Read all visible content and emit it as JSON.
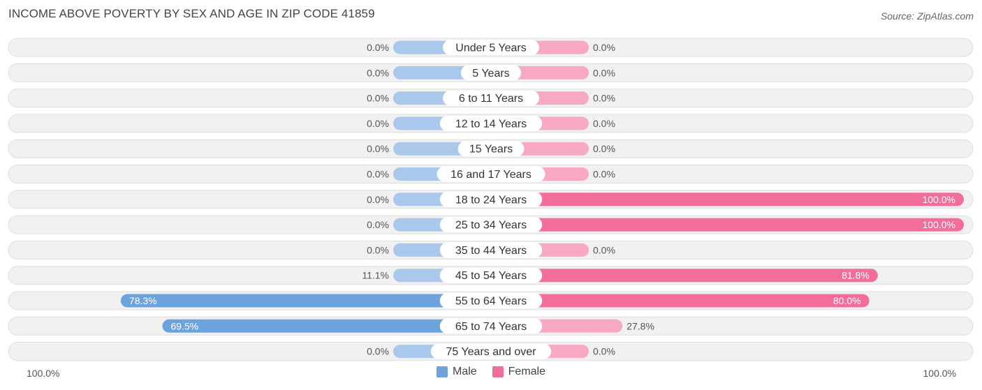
{
  "title": "INCOME ABOVE POVERTY BY SEX AND AGE IN ZIP CODE 41859",
  "source": "Source: ZipAtlas.com",
  "colors": {
    "male_light": "#aac8ec",
    "male_dark": "#6da3dd",
    "female_light": "#f7a9c2",
    "female_dark": "#f26e98",
    "row_bg": "#f1f1f1",
    "row_border": "#dedede"
  },
  "legend": {
    "male": "Male",
    "female": "Female"
  },
  "axis": {
    "left": "100.0%",
    "right": "100.0%"
  },
  "chart_data": {
    "type": "bar",
    "orientation": "horizontal-diverging",
    "title": "INCOME ABOVE POVERTY BY SEX AND AGE IN ZIP CODE 41859",
    "categories": [
      "Under 5 Years",
      "5 Years",
      "6 to 11 Years",
      "12 to 14 Years",
      "15 Years",
      "16 and 17 Years",
      "18 to 24 Years",
      "25 to 34 Years",
      "35 to 44 Years",
      "45 to 54 Years",
      "55 to 64 Years",
      "65 to 74 Years",
      "75 Years and over"
    ],
    "series": [
      {
        "name": "Male",
        "values": [
          0.0,
          0.0,
          0.0,
          0.0,
          0.0,
          0.0,
          0.0,
          0.0,
          0.0,
          11.1,
          78.3,
          69.5,
          0.0
        ]
      },
      {
        "name": "Female",
        "values": [
          0.0,
          0.0,
          0.0,
          0.0,
          0.0,
          0.0,
          100.0,
          100.0,
          0.0,
          81.8,
          80.0,
          27.8,
          0.0
        ]
      }
    ],
    "xlim": [
      -100,
      100
    ],
    "value_format": "0.0%",
    "legend_position": "bottom-center"
  }
}
